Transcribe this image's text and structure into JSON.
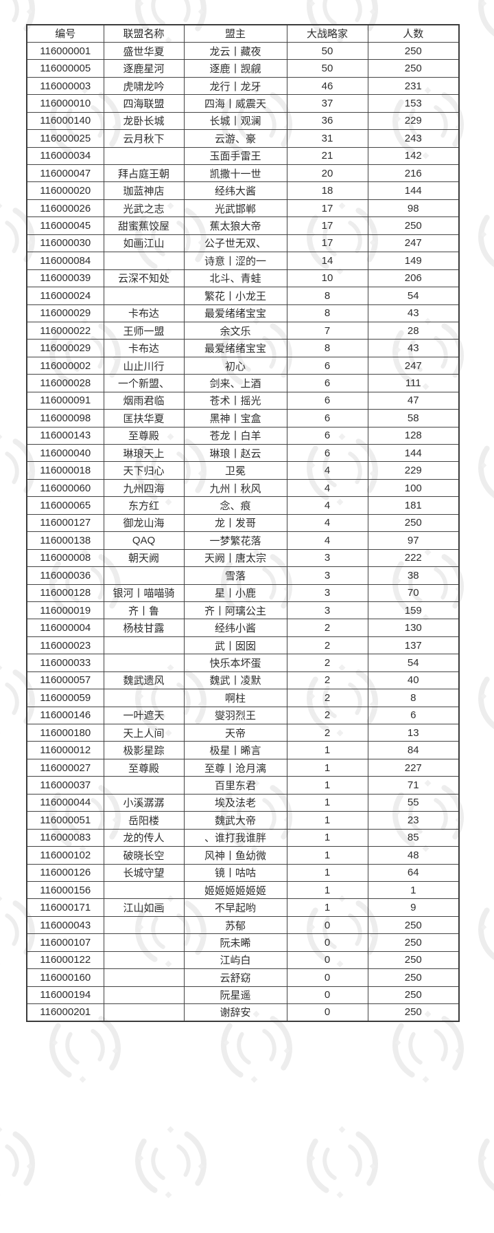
{
  "table": {
    "columns": [
      "编号",
      "联盟名称",
      "盟主",
      "大战略家",
      "人数"
    ],
    "rows": [
      [
        "116000001",
        "盛世华夏",
        "龙云丨藏夜",
        "50",
        "250"
      ],
      [
        "116000005",
        "逐鹿星河",
        "逐鹿丨觊觎",
        "50",
        "250"
      ],
      [
        "116000003",
        "虎啸龙吟",
        "龙行丨龙牙",
        "46",
        "231"
      ],
      [
        "116000010",
        "四海联盟",
        "四海丨威震天",
        "37",
        "153"
      ],
      [
        "116000140",
        "龙卧长城",
        "长城丨观澜",
        "36",
        "229"
      ],
      [
        "116000025",
        "云月秋下",
        "云游、豪",
        "31",
        "243"
      ],
      [
        "116000034",
        "",
        "玉面手雷王",
        "21",
        "142"
      ],
      [
        "116000047",
        "拜占庭王朝",
        "凯撒十一世",
        "20",
        "216"
      ],
      [
        "116000020",
        "珈蓝神店",
        "经纬大酱",
        "18",
        "144"
      ],
      [
        "116000026",
        "光武之志",
        "光武邯郸",
        "17",
        "98"
      ],
      [
        "116000045",
        "甜蜜蕉饺屋",
        "蕉太狼大帝",
        "17",
        "250"
      ],
      [
        "116000030",
        "如画江山",
        "公子世无双、",
        "17",
        "247"
      ],
      [
        "116000084",
        "",
        "诗意丨涩的一",
        "14",
        "149"
      ],
      [
        "116000039",
        "云深不知处",
        "北斗、青蛙",
        "10",
        "206"
      ],
      [
        "116000024",
        "",
        "繁花丨小龙王",
        "8",
        "54"
      ],
      [
        "116000029",
        "卡布达",
        "最爱绪绪宝宝",
        "8",
        "43"
      ],
      [
        "116000022",
        "王师一盟",
        "余文乐",
        "7",
        "28"
      ],
      [
        "116000029",
        "卡布达",
        "最爱绪绪宝宝",
        "8",
        "43"
      ],
      [
        "116000002",
        "山止川行",
        "初心",
        "6",
        "247"
      ],
      [
        "116000028",
        "一个新盟、",
        "剑来、上酒",
        "6",
        "111"
      ],
      [
        "116000091",
        "烟雨君临",
        "苍术丨摇光",
        "6",
        "47"
      ],
      [
        "116000098",
        "匡扶华夏",
        "黑神丨宝盒",
        "6",
        "58"
      ],
      [
        "116000143",
        "至尊殿",
        "苍龙丨白羊",
        "6",
        "128"
      ],
      [
        "116000040",
        "琳琅天上",
        "琳琅丨赵云",
        "6",
        "144"
      ],
      [
        "116000018",
        "天下归心",
        "卫冕",
        "4",
        "229"
      ],
      [
        "116000060",
        "九州四海",
        "九州丨秋风",
        "4",
        "100"
      ],
      [
        "116000065",
        "东方红",
        "念、痕",
        "4",
        "181"
      ],
      [
        "116000127",
        "御龙山海",
        "龙丨发哥",
        "4",
        "250"
      ],
      [
        "116000138",
        "QAQ",
        "一梦繁花落",
        "4",
        "97"
      ],
      [
        "116000008",
        "朝天阙",
        "天阙丨唐太宗",
        "3",
        "222"
      ],
      [
        "116000036",
        "",
        "雪落",
        "3",
        "38"
      ],
      [
        "116000128",
        "银河丨喵喵骑",
        "星丨小鹿",
        "3",
        "70"
      ],
      [
        "116000019",
        "齐丨鲁",
        "齐丨阿璃公主",
        "3",
        "159"
      ],
      [
        "116000004",
        "杨枝甘露",
        "经纬小酱",
        "2",
        "130"
      ],
      [
        "116000023",
        "",
        "武丨囡囡",
        "2",
        "137"
      ],
      [
        "116000033",
        "",
        "快乐本坏蛋",
        "2",
        "54"
      ],
      [
        "116000057",
        "魏武遗风",
        "魏武丨凌默",
        "2",
        "40"
      ],
      [
        "116000059",
        "",
        "啊柱",
        "2",
        "8"
      ],
      [
        "116000146",
        "一叶遮天",
        "燮羽烈王",
        "2",
        "6"
      ],
      [
        "116000180",
        "天上人间",
        "天帝",
        "2",
        "13"
      ],
      [
        "116000012",
        "极影星踪",
        "极星丨晞言",
        "1",
        "84"
      ],
      [
        "116000027",
        "至尊殿",
        "至尊丨沧月漓",
        "1",
        "227"
      ],
      [
        "116000037",
        "",
        "百里东君",
        "1",
        "71"
      ],
      [
        "116000044",
        "小溪潺潺",
        "埃及法老",
        "1",
        "55"
      ],
      [
        "116000051",
        "岳阳楼",
        "魏武大帝",
        "1",
        "23"
      ],
      [
        "116000083",
        "龙的传人",
        "、谁打我谁胖",
        "1",
        "85"
      ],
      [
        "116000102",
        "破晓长空",
        "风神丨鱼幼微",
        "1",
        "48"
      ],
      [
        "116000126",
        "长城守望",
        "镜丨咕咕",
        "1",
        "64"
      ],
      [
        "116000156",
        "",
        "姬姬姬姬姬姬",
        "1",
        "1"
      ],
      [
        "116000171",
        "江山如画",
        "不早起哟",
        "1",
        "9"
      ],
      [
        "116000043",
        "",
        "苏郁",
        "0",
        "250"
      ],
      [
        "116000107",
        "",
        "阮未晞",
        "0",
        "250"
      ],
      [
        "116000122",
        "",
        "江屿白",
        "0",
        "250"
      ],
      [
        "116000160",
        "",
        "云舒窈",
        "0",
        "250"
      ],
      [
        "116000194",
        "",
        "阮星遥",
        "0",
        "250"
      ],
      [
        "116000201",
        "",
        "谢辞安",
        "0",
        "250"
      ]
    ]
  }
}
